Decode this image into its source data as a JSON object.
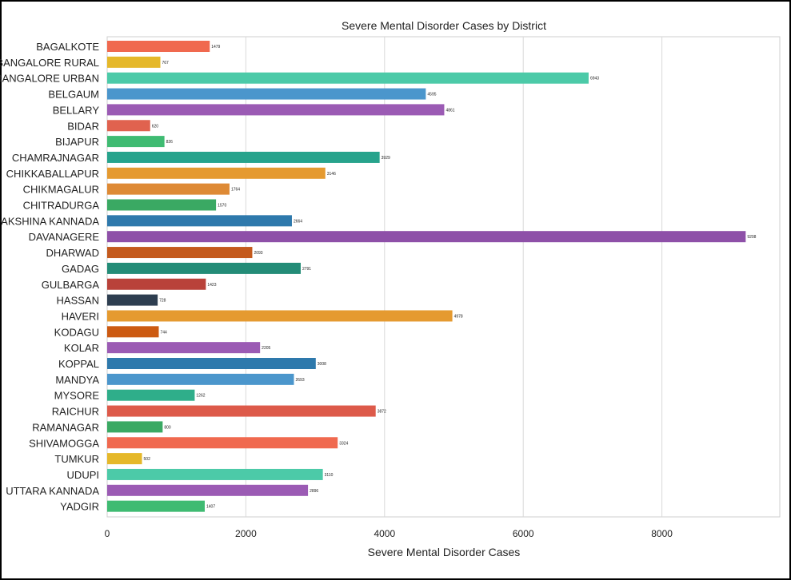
{
  "chart_data": {
    "type": "bar",
    "orientation": "horizontal",
    "title": "Severe Mental Disorder Cases by District",
    "xlabel": "Severe Mental Disorder Cases",
    "ylabel": "",
    "xlim": [
      0,
      9700
    ],
    "xticks": [
      0,
      2000,
      4000,
      6000,
      8000
    ],
    "grid": "vertical",
    "categories": [
      "BAGALKOTE",
      "BANGALORE RURAL",
      "BANGALORE URBAN",
      "BELGAUM",
      "BELLARY",
      "BIDAR",
      "BIJAPUR",
      "CHAMRAJNAGAR",
      "CHIKKABALLAPUR",
      "CHIKMAGALUR",
      "CHITRADURGA",
      "DAKSHINA KANNADA",
      "DAVANAGERE",
      "DHARWAD",
      "GADAG",
      "GULBARGA",
      "HASSAN",
      "HAVERI",
      "KODAGU",
      "KOLAR",
      "KOPPAL",
      "MANDYA",
      "MYSORE",
      "RAICHUR",
      "RAMANAGAR",
      "SHIVAMOGGA",
      "TUMKUR",
      "UDUPI",
      "UTTARA KANNADA",
      "YADGIR"
    ],
    "values": [
      1479,
      767,
      6943,
      4595,
      4861,
      620,
      826,
      3929,
      3146,
      1764,
      1570,
      2664,
      9208,
      2093,
      2791,
      1423,
      728,
      4978,
      744,
      2205,
      3008,
      2693,
      1262,
      3872,
      800,
      3324,
      502,
      3110,
      2896,
      1407
    ],
    "value_labels": [
      "1479",
      "767",
      "6943",
      "4595",
      "4861",
      "620",
      "826",
      "3929",
      "3146",
      "1764",
      "1570",
      "2664",
      "9208",
      "2093",
      "2791",
      "1423",
      "728",
      "4978",
      "744",
      "2205",
      "3008",
      "2693",
      "1262",
      "3872",
      "800",
      "3324",
      "502",
      "3110",
      "2896",
      "1407"
    ],
    "colors": [
      "#f0694f",
      "#e5b82a",
      "#4ccaa8",
      "#4b96cc",
      "#9b5bb4",
      "#e0624f",
      "#3fbb72",
      "#27a38c",
      "#e59a30",
      "#de8a35",
      "#3aa963",
      "#2e79ac",
      "#8e50a8",
      "#c45a1d",
      "#238c77",
      "#b9423a",
      "#2e3e50",
      "#e59a30",
      "#cc5a12",
      "#9b5bb4",
      "#2e79ac",
      "#4b96cc",
      "#2fae8a",
      "#dd5a4a",
      "#3aa963",
      "#f0694f",
      "#e5b82a",
      "#4ccaa8",
      "#9b5bb4",
      "#3fbb72"
    ]
  }
}
